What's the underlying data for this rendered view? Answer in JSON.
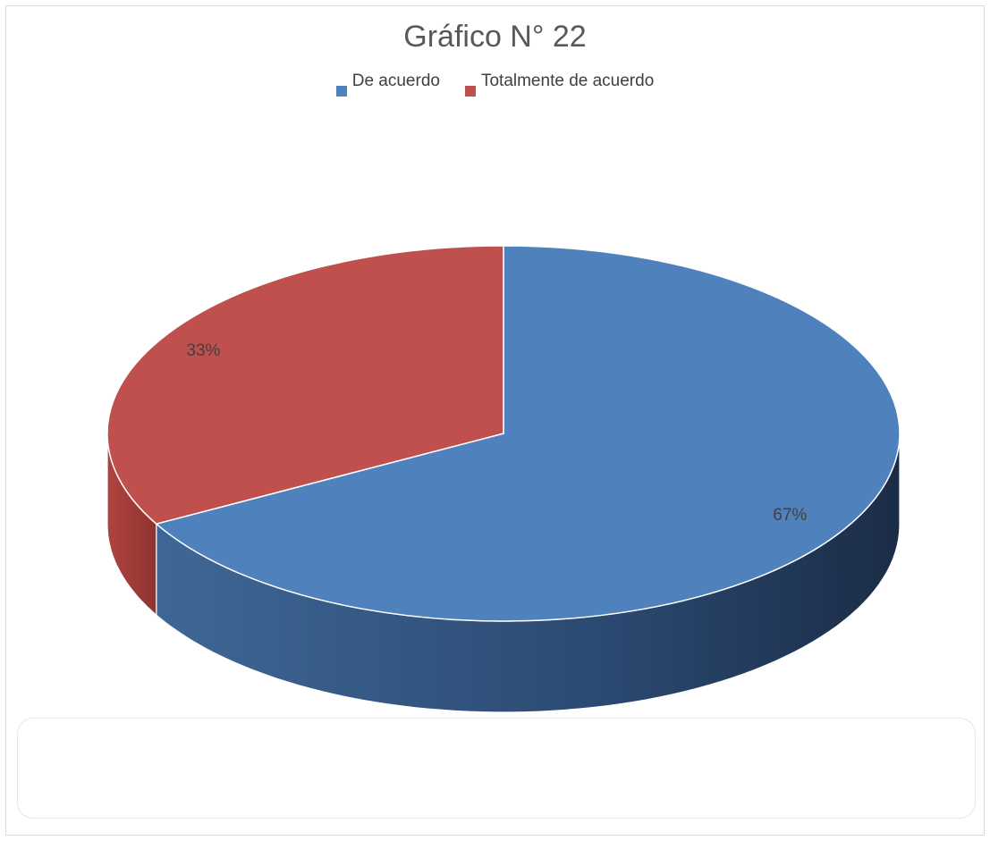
{
  "chart_data": {
    "type": "pie",
    "title": "Gráfico N° 22",
    "categories": [
      "De acuerdo",
      "Totalmente de acuerdo"
    ],
    "values": [
      67,
      33
    ],
    "data_labels": [
      "67%",
      "33%"
    ],
    "colors": [
      "#4f81bd",
      "#c0504d"
    ],
    "legend_position": "top",
    "style": "3d"
  },
  "note_box": {
    "text": ""
  }
}
